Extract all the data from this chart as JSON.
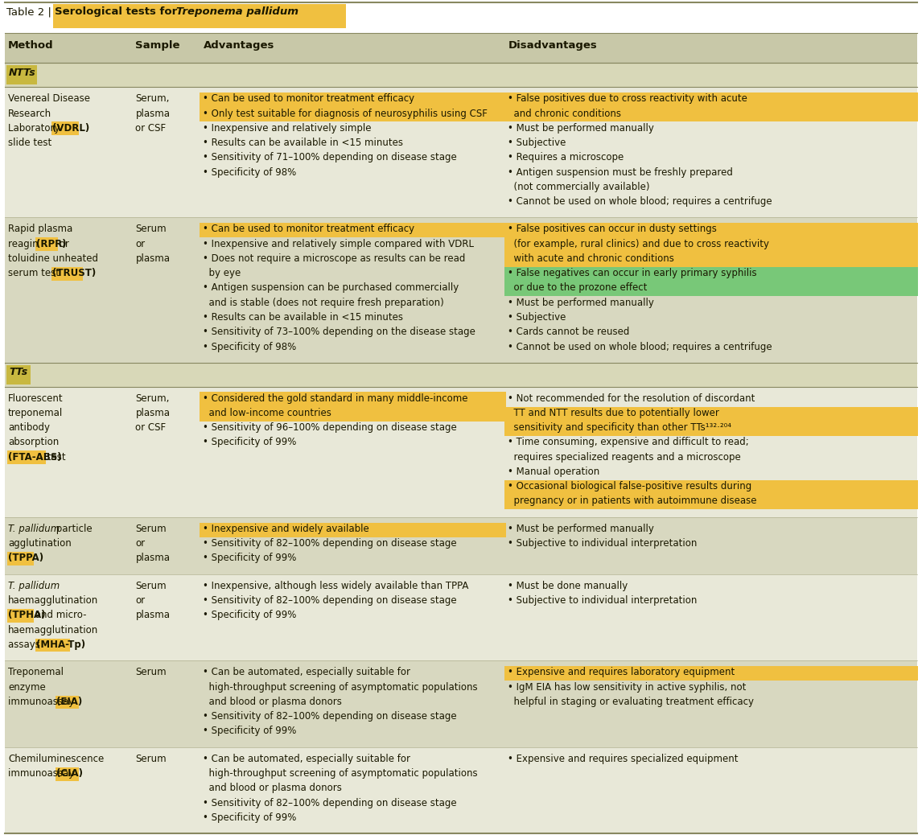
{
  "title_plain": "Table 2 | ",
  "title_bold": "Serological tests for ",
  "title_italic": "Treponema pallidum",
  "title_highlight_color": "#f0c040",
  "col_headers": [
    "Method",
    "Sample",
    "Advantages",
    "Disadvantages"
  ],
  "header_bg": "#c8c8a8",
  "section_bg": "#c8b840",
  "section_row_bg": "#d8d8b8",
  "row_bg_0": "#e8e8d8",
  "row_bg_1": "#d8d8c0",
  "highlight_yellow": "#f0c040",
  "highlight_green": "#78c878",
  "text_color": "#1a1800",
  "border_color": "#888860",
  "rows": [
    {
      "section": "NTTs",
      "method_lines": [
        "Venereal Disease",
        "Research",
        "Laboratory (VDRL)",
        "slide test"
      ],
      "method_hi": [
        "(VDRL)"
      ],
      "sample_lines": [
        "Serum,",
        "plasma",
        "or CSF"
      ],
      "adv_lines": [
        [
          "• Can be used ",
          "to monitor treatment efficacy",
          "",
          "#f0c040"
        ],
        [
          "• Only test suitable for diagnosis of ",
          "neurosyphilis",
          " using CSF",
          "#f0c040"
        ],
        [
          "• Inexpensive and relatively simple",
          "",
          "",
          ""
        ],
        [
          "• Results can be available in <15 minutes",
          "",
          "",
          ""
        ],
        [
          "• Sensitivity of 71–100% depending on disease stage",
          "",
          "",
          ""
        ],
        [
          "• Specificity of 98%",
          "",
          "",
          ""
        ]
      ],
      "adv_full_line_hi": [
        0,
        1
      ],
      "adv_hi_colors": [
        "#f0c040",
        "#f0c040"
      ],
      "dis_lines": [
        "• False positives due to cross reactivity with acute",
        "  and chronic conditions",
        "• Must be performed manually",
        "• Subjective",
        "• Requires a microscope",
        "• Antigen suspension must be freshly prepared",
        "  (not commercially available)",
        "• Cannot be used on whole blood; requires a centrifuge"
      ],
      "dis_hi_lines": [
        0,
        1
      ],
      "dis_hi_color": "#f0c040",
      "row_bg": "#e8e8d8",
      "row_idx": 0
    },
    {
      "section": "NTTs",
      "method_lines": [
        "Rapid plasma",
        "reagin (RPR) or",
        "toluidine unheated",
        "serum test (TRUST)"
      ],
      "method_hi": [
        "(RPR)",
        "(TRUST)"
      ],
      "sample_lines": [
        "Serum",
        "or",
        "plasma"
      ],
      "adv_lines": [
        [
          "• Can be used ",
          "to monitor treatment efficacy",
          "",
          "#f0c040"
        ],
        [
          "• Inexpensive and relatively simple compared with VDRL",
          "",
          "",
          ""
        ],
        [
          "• Does not require a microscope as results can be read",
          "",
          "",
          ""
        ],
        [
          "  by eye",
          "",
          "",
          ""
        ],
        [
          "• Antigen suspension can be purchased commercially",
          "",
          "",
          ""
        ],
        [
          "  and is stable (does not require fresh preparation)",
          "",
          "",
          ""
        ],
        [
          "• Results can be available in <15 minutes",
          "",
          "",
          ""
        ],
        [
          "• Sensitivity of 73–100% depending on the disease stage",
          "",
          "",
          ""
        ],
        [
          "• Specificity of 98%",
          "",
          "",
          ""
        ]
      ],
      "adv_full_line_hi": [
        0
      ],
      "adv_hi_colors": [
        "#f0c040"
      ],
      "dis_lines": [
        "• False positives can occur in dusty settings",
        "  (for example, rural clinics) and due to cross reactivity",
        "  with acute and chronic conditions",
        "• False negatives can occur in early primary syphilis",
        "  or due to the prozone effect",
        "• Must be performed manually",
        "• Subjective",
        "• Cards cannot be reused",
        "• Cannot be used on whole blood; requires a centrifuge"
      ],
      "dis_hi_lines": [
        0,
        1,
        2
      ],
      "dis_hi_color": "#f0c040",
      "dis_hi2_lines": [
        3,
        4
      ],
      "dis_hi2_color": "#78c878",
      "row_bg": "#d8d8c0",
      "row_idx": 1
    },
    {
      "section": "TTs",
      "method_lines": [
        "Fluorescent",
        "treponemal",
        "antibody",
        "absorption",
        "(FTA-ABS) test"
      ],
      "method_hi": [
        "(FTA-ABS)"
      ],
      "sample_lines": [
        "Serum,",
        "plasma",
        "or CSF"
      ],
      "adv_lines": [
        [
          "• Considered the gold standard in many middle-income",
          "",
          "",
          "#f0c040"
        ],
        [
          "  and low-income countries",
          "",
          "",
          "#f0c040"
        ],
        [
          "• Sensitivity of 96–100% depending on disease stage",
          "",
          "",
          ""
        ],
        [
          "• Specificity of 99%",
          "",
          "",
          ""
        ]
      ],
      "adv_full_line_hi": [
        0,
        1
      ],
      "adv_hi_colors": [
        "#f0c040",
        "#f0c040"
      ],
      "dis_lines": [
        "• Not recommended for the resolution of discordant",
        "  TT and NTT results due to potentially lower",
        "  sensitivity and specificity than other TTs¹³²·²⁰⁴",
        "• Time consuming, expensive and difficult to read;",
        "  requires specialized reagents and a microscope",
        "• Manual operation",
        "• Occasional biological false-positive results during",
        "  pregnancy or in patients with autoimmune disease"
      ],
      "dis_hi_lines": [
        1,
        2
      ],
      "dis_hi_color": "#f0c040",
      "dis_hi2_lines": [
        6,
        7
      ],
      "dis_hi2_color": "#f0c040",
      "row_bg": "#e8e8d8",
      "row_idx": 0
    },
    {
      "section": "TTs",
      "method_lines": [
        "T. pallidum particle",
        "agglutination",
        "(TPPA)"
      ],
      "method_italic": "T. pallidum",
      "method_hi": [
        "(TPPA)"
      ],
      "sample_lines": [
        "Serum",
        "or",
        "plasma"
      ],
      "adv_lines": [
        [
          "• Inexpensive and widely available",
          "",
          "",
          "#f0c040"
        ],
        [
          "• Sensitivity of 82–100% depending on disease stage",
          "",
          "",
          ""
        ],
        [
          "• Specificity of 99%",
          "",
          "",
          ""
        ]
      ],
      "adv_full_line_hi": [
        0
      ],
      "adv_hi_colors": [
        "#f0c040"
      ],
      "dis_lines": [
        "• Must be performed manually",
        "• Subjective to individual interpretation"
      ],
      "dis_hi_lines": [],
      "dis_hi_color": "",
      "row_bg": "#d8d8c0",
      "row_idx": 1
    },
    {
      "section": "TTs",
      "method_lines": [
        "T. pallidum",
        "haemagglutination",
        "(TPHA) and micro-",
        "haemagglutination",
        "assays (MHA-Tp)"
      ],
      "method_italic": "T. pallidum",
      "method_hi": [
        "(TPHA)",
        "(MHA-Tp)"
      ],
      "sample_lines": [
        "Serum",
        "or",
        "plasma"
      ],
      "adv_lines": [
        [
          "• Inexpensive, although less widely available than TPPA",
          "",
          "",
          ""
        ],
        [
          "• Sensitivity of 82–100% depending on disease stage",
          "",
          "",
          ""
        ],
        [
          "• Specificity of 99%",
          "",
          "",
          ""
        ]
      ],
      "adv_full_line_hi": [],
      "adv_hi_colors": [],
      "dis_lines": [
        "• Must be done manually",
        "• Subjective to individual interpretation"
      ],
      "dis_hi_lines": [],
      "dis_hi_color": "",
      "row_bg": "#e8e8d8",
      "row_idx": 0
    },
    {
      "section": "TTs",
      "method_lines": [
        "Treponemal",
        "enzyme",
        "immunoassay (EIA)"
      ],
      "method_hi": [
        "(EIA)"
      ],
      "sample_lines": [
        "Serum"
      ],
      "adv_lines": [
        [
          "• Can be automated, especially suitable for",
          "",
          "",
          ""
        ],
        [
          "  high-throughput screening of asymptomatic populations",
          "",
          "",
          ""
        ],
        [
          "  and blood or plasma donors",
          "",
          "",
          ""
        ],
        [
          "• Sensitivity of 82–100% depending on disease stage",
          "",
          "",
          ""
        ],
        [
          "• Specificity of 99%",
          "",
          "",
          ""
        ]
      ],
      "adv_full_line_hi": [],
      "adv_hi_colors": [],
      "dis_lines": [
        "• Expensive and requires laboratory equipment",
        "• IgM EIA has low sensitivity in active syphilis, not",
        "  helpful in staging or evaluating treatment efficacy"
      ],
      "dis_hi_lines": [
        0
      ],
      "dis_hi_color": "#f0c040",
      "row_bg": "#d8d8c0",
      "row_idx": 1
    },
    {
      "section": "TTs",
      "method_lines": [
        "Chemiluminescence",
        "immunoassay (CIA)"
      ],
      "method_hi": [
        "(CIA)"
      ],
      "sample_lines": [
        "Serum"
      ],
      "adv_lines": [
        [
          "• Can be automated, especially suitable for",
          "",
          "",
          ""
        ],
        [
          "  high-throughput screening of asymptomatic populations",
          "",
          "",
          ""
        ],
        [
          "  and blood or plasma donors",
          "",
          "",
          ""
        ],
        [
          "• Sensitivity of 82–100% depending on disease stage",
          "",
          "",
          ""
        ],
        [
          "• Specificity of 99%",
          "",
          "",
          ""
        ]
      ],
      "adv_full_line_hi": [],
      "adv_hi_colors": [],
      "dis_lines": [
        "• Expensive and requires specialized equipment"
      ],
      "dis_hi_lines": [],
      "dis_hi_color": "",
      "row_bg": "#e8e8d8",
      "row_idx": 0
    }
  ]
}
